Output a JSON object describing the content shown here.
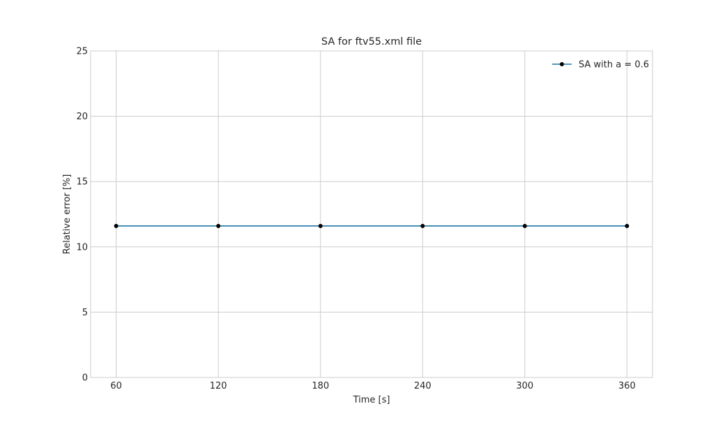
{
  "chart_data": {
    "type": "line",
    "title": "SA for ftv55.xml file",
    "xlabel": "Time [s]",
    "ylabel": "Relative error [%]",
    "x": [
      60,
      120,
      180,
      240,
      300,
      360
    ],
    "xticks": [
      "60",
      "120",
      "180",
      "240",
      "300",
      "360"
    ],
    "yticks": [
      "0",
      "5",
      "10",
      "15",
      "20",
      "25"
    ],
    "xlim": [
      45,
      375
    ],
    "ylim": [
      0,
      25
    ],
    "grid": true,
    "legend_position": "top-right",
    "series": [
      {
        "name": "SA with a = 0.6",
        "values": [
          11.6,
          11.6,
          11.6,
          11.6,
          11.6,
          11.6
        ],
        "line_color": "#1f77a4",
        "marker_color": "#000000"
      }
    ]
  }
}
